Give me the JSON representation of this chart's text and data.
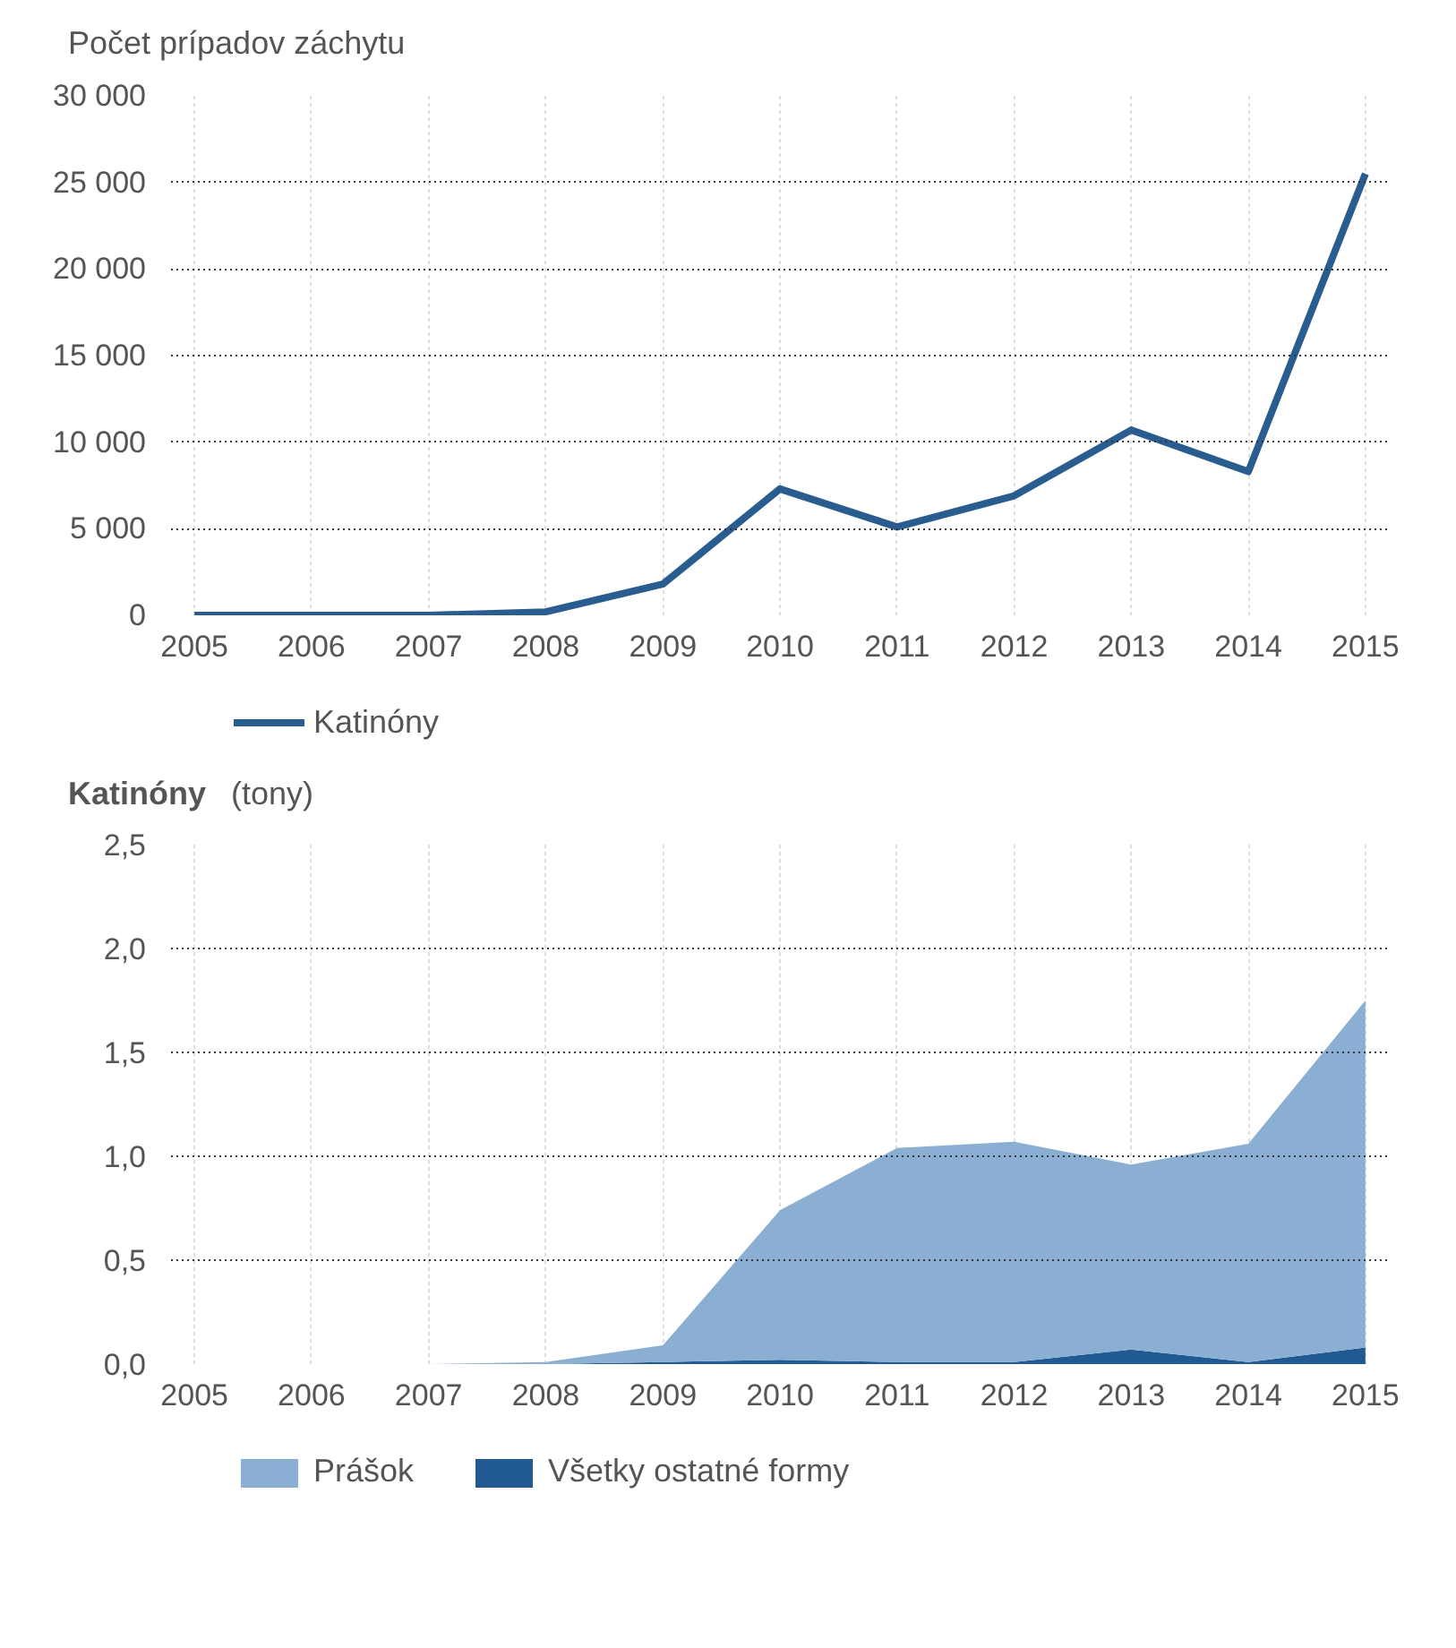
{
  "chart_data": [
    {
      "type": "line",
      "title": "Počet prípadov záchytu",
      "x": [
        2005,
        2006,
        2007,
        2008,
        2009,
        2010,
        2011,
        2012,
        2013,
        2014,
        2015
      ],
      "series": [
        {
          "name": "Katinóny",
          "color": "#2a5d8f",
          "values": [
            0,
            0,
            0,
            200,
            1800,
            7300,
            5100,
            6900,
            10700,
            8300,
            25500
          ]
        }
      ],
      "xlim": [
        2004.8,
        2015.2
      ],
      "xticks": [
        2005,
        2006,
        2007,
        2008,
        2009,
        2010,
        2011,
        2012,
        2013,
        2014,
        2015
      ],
      "ylim": [
        0,
        30000
      ],
      "yticks": [
        0,
        {
          "value": 5000,
          "label": "5 000"
        },
        {
          "value": 10000,
          "label": "10 000"
        },
        {
          "value": 15000,
          "label": "15 000"
        },
        {
          "value": 20000,
          "label": "20 000"
        },
        {
          "value": 25000,
          "label": "25 000"
        },
        {
          "value": 30000,
          "label": "30 000"
        }
      ],
      "grid": true,
      "legend": "bottom",
      "line_style": "solid"
    },
    {
      "type": "area",
      "title": "Katinóny",
      "subtitle": "(tony)",
      "stacked": true,
      "x": [
        2005,
        2006,
        2007,
        2008,
        2009,
        2010,
        2011,
        2012,
        2013,
        2014,
        2015
      ],
      "series": [
        {
          "name": "Všetky ostatné formy",
          "color": "#215a93",
          "values": [
            0,
            0,
            0,
            0,
            0.01,
            0.02,
            0.01,
            0.01,
            0.07,
            0.01,
            0.08
          ]
        },
        {
          "name": "Prášok",
          "color": "#8aafd3",
          "values": [
            0,
            0,
            0,
            0.01,
            0.08,
            0.72,
            1.03,
            1.06,
            0.89,
            1.05,
            1.67
          ]
        }
      ],
      "xlim": [
        2004.8,
        2015.2
      ],
      "xticks": [
        2005,
        2006,
        2007,
        2008,
        2009,
        2010,
        2011,
        2012,
        2013,
        2014,
        2015
      ],
      "ylim": [
        0,
        2.5
      ],
      "yticks": [
        {
          "value": 0,
          "label": "0,0"
        },
        {
          "value": 0.5,
          "label": "0,5"
        },
        {
          "value": 1,
          "label": "1,0"
        },
        {
          "value": 1.5,
          "label": "1,5"
        },
        {
          "value": 2,
          "label": "2,0"
        },
        {
          "value": 2.5,
          "label": "2,5"
        }
      ],
      "grid": true,
      "legend": "bottom"
    }
  ]
}
